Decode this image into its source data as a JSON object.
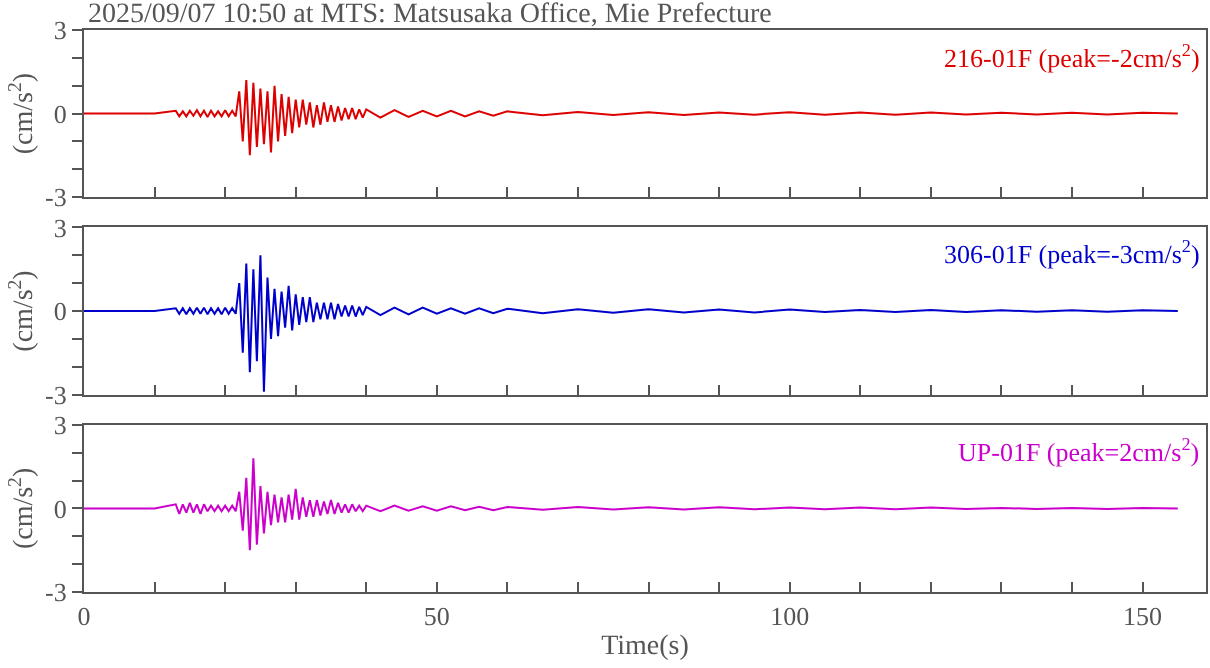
{
  "chart_data": [
    {
      "type": "line",
      "title": "2025/09/07 10:50 at MTS: Matsusaka Office, Mie Prefecture",
      "ylabel": "(cm/s$^{2}$)",
      "legend": false,
      "tick_labels": "y",
      "marker": "none",
      "line_style": "solid",
      "xlim": [
        0,
        159
      ],
      "xticks": [
        0,
        {
          "value": 10,
          "label": null
        },
        {
          "value": 20,
          "label": null
        },
        {
          "value": 30,
          "label": null
        },
        {
          "value": 40,
          "label": null
        },
        50,
        {
          "value": 60,
          "label": null
        },
        {
          "value": 70,
          "label": null
        },
        {
          "value": 80,
          "label": null
        },
        {
          "value": 90,
          "label": null
        },
        100,
        {
          "value": 110,
          "label": null
        },
        {
          "value": 120,
          "label": null
        },
        {
          "value": 130,
          "label": null
        },
        {
          "value": 140,
          "label": null
        },
        150
      ],
      "ylim": [
        -3,
        3
      ],
      "yticks": [
        -3,
        {
          "value": -2,
          "label": null
        },
        {
          "value": -1,
          "label": null
        },
        0,
        {
          "value": 1,
          "label": null
        },
        {
          "value": 2,
          "label": null
        },
        3
      ],
      "x": [
        0,
        10,
        13,
        13.5,
        14,
        14.5,
        15,
        15.5,
        16,
        16.5,
        17,
        17.5,
        18,
        18.5,
        19,
        19.5,
        20,
        20.5,
        21,
        21.5,
        22,
        22.5,
        23,
        23.5,
        24,
        24.5,
        25,
        25.5,
        26,
        26.5,
        27,
        27.5,
        28,
        28.5,
        29,
        29.5,
        30,
        30.5,
        31,
        31.5,
        32,
        32.5,
        33,
        33.5,
        34,
        34.5,
        35,
        35.5,
        36,
        36.5,
        37,
        37.5,
        38,
        38.5,
        39,
        39.5,
        40,
        42,
        44,
        46,
        48,
        50,
        52,
        54,
        56,
        58,
        60,
        65,
        70,
        75,
        80,
        85,
        90,
        95,
        100,
        105,
        110,
        115,
        120,
        125,
        130,
        135,
        140,
        145,
        150,
        155
      ],
      "series": [
        {
          "name": "216-01F (peak=-2cm/s$^{2}$)",
          "color": "#dd0000",
          "values": [
            0,
            0,
            0.1,
            -0.1,
            0.08,
            -0.1,
            0.1,
            -0.08,
            0.12,
            -0.1,
            0.1,
            -0.12,
            0.1,
            -0.1,
            0.08,
            -0.1,
            0.12,
            -0.1,
            0.1,
            -0.1,
            0.8,
            -1.0,
            1.2,
            -1.5,
            1.1,
            -1.2,
            0.9,
            -1.1,
            0.8,
            -1.4,
            1.0,
            -1.0,
            0.7,
            -0.8,
            0.6,
            -0.7,
            0.5,
            -0.5,
            0.5,
            -0.4,
            0.4,
            -0.5,
            0.3,
            -0.4,
            0.4,
            -0.3,
            0.3,
            -0.3,
            0.25,
            -0.25,
            0.2,
            -0.2,
            0.2,
            -0.2,
            0.15,
            -0.15,
            0.15,
            -0.15,
            0.12,
            -0.12,
            0.1,
            -0.1,
            0.1,
            -0.1,
            0.08,
            -0.08,
            0.08,
            -0.06,
            0.06,
            -0.05,
            0.05,
            -0.05,
            0.04,
            -0.04,
            0.05,
            -0.04,
            0.04,
            -0.04,
            0.04,
            -0.03,
            0.03,
            -0.03,
            0.03,
            -0.03,
            0.03,
            0
          ]
        }
      ]
    },
    {
      "type": "line",
      "ylabel": "(cm/s$^{2}$)",
      "legend": false,
      "tick_labels": "y",
      "marker": "none",
      "line_style": "solid",
      "xlim": [
        0,
        159
      ],
      "xticks": [
        0,
        {
          "value": 10,
          "label": null
        },
        {
          "value": 20,
          "label": null
        },
        {
          "value": 30,
          "label": null
        },
        {
          "value": 40,
          "label": null
        },
        50,
        {
          "value": 60,
          "label": null
        },
        {
          "value": 70,
          "label": null
        },
        {
          "value": 80,
          "label": null
        },
        {
          "value": 90,
          "label": null
        },
        100,
        {
          "value": 110,
          "label": null
        },
        {
          "value": 120,
          "label": null
        },
        {
          "value": 130,
          "label": null
        },
        {
          "value": 140,
          "label": null
        },
        150
      ],
      "ylim": [
        -3,
        3
      ],
      "yticks": [
        -3,
        {
          "value": -2,
          "label": null
        },
        {
          "value": -1,
          "label": null
        },
        0,
        {
          "value": 1,
          "label": null
        },
        {
          "value": 2,
          "label": null
        },
        3
      ],
      "x": [
        0,
        10,
        13,
        13.5,
        14,
        14.5,
        15,
        15.5,
        16,
        16.5,
        17,
        17.5,
        18,
        18.5,
        19,
        19.5,
        20,
        20.5,
        21,
        21.5,
        22,
        22.5,
        23,
        23.5,
        24,
        24.5,
        25,
        25.5,
        26,
        26.5,
        27,
        27.5,
        28,
        28.5,
        29,
        29.5,
        30,
        30.5,
        31,
        31.5,
        32,
        32.5,
        33,
        33.5,
        34,
        34.5,
        35,
        35.5,
        36,
        36.5,
        37,
        37.5,
        38,
        38.5,
        39,
        39.5,
        40,
        42,
        44,
        46,
        48,
        50,
        52,
        54,
        56,
        58,
        60,
        65,
        70,
        75,
        80,
        85,
        90,
        95,
        100,
        105,
        110,
        115,
        120,
        125,
        130,
        135,
        140,
        145,
        150,
        155
      ],
      "series": [
        {
          "name": "306-01F (peak=-3cm/s$^{2}$)",
          "color": "#0000cc",
          "values": [
            0,
            0,
            0.1,
            -0.1,
            0.1,
            -0.12,
            0.1,
            -0.1,
            0.12,
            -0.1,
            0.12,
            -0.12,
            0.1,
            -0.1,
            0.1,
            -0.12,
            0.12,
            -0.1,
            0.1,
            -0.1,
            1.0,
            -1.5,
            1.7,
            -2.2,
            1.5,
            -1.8,
            2.0,
            -2.9,
            1.2,
            -1.0,
            0.8,
            -0.9,
            0.7,
            -0.6,
            0.9,
            -0.7,
            0.6,
            -0.5,
            0.5,
            -0.4,
            0.5,
            -0.4,
            0.3,
            -0.3,
            0.3,
            -0.3,
            0.3,
            -0.3,
            0.25,
            -0.2,
            0.2,
            -0.2,
            0.2,
            -0.2,
            0.15,
            -0.15,
            0.15,
            -0.15,
            0.12,
            -0.12,
            0.12,
            -0.1,
            0.1,
            -0.1,
            0.1,
            -0.08,
            0.08,
            -0.08,
            0.06,
            -0.06,
            0.06,
            -0.05,
            0.05,
            -0.05,
            0.05,
            -0.04,
            0.04,
            -0.04,
            0.04,
            -0.04,
            0.03,
            -0.03,
            0.03,
            -0.03,
            0.03,
            0
          ]
        }
      ]
    },
    {
      "type": "line",
      "ylabel": "(cm/s$^{2}$)",
      "xlabel": "Time(s)",
      "legend": false,
      "marker": "none",
      "line_style": "solid",
      "xlim": [
        0,
        159
      ],
      "xticks": [
        0,
        {
          "value": 10,
          "label": null
        },
        {
          "value": 20,
          "label": null
        },
        {
          "value": 30,
          "label": null
        },
        {
          "value": 40,
          "label": null
        },
        50,
        {
          "value": 60,
          "label": null
        },
        {
          "value": 70,
          "label": null
        },
        {
          "value": 80,
          "label": null
        },
        {
          "value": 90,
          "label": null
        },
        100,
        {
          "value": 110,
          "label": null
        },
        {
          "value": 120,
          "label": null
        },
        {
          "value": 130,
          "label": null
        },
        {
          "value": 140,
          "label": null
        },
        150
      ],
      "ylim": [
        -3,
        3
      ],
      "yticks": [
        -3,
        {
          "value": -2,
          "label": null
        },
        {
          "value": -1,
          "label": null
        },
        0,
        {
          "value": 1,
          "label": null
        },
        {
          "value": 2,
          "label": null
        },
        3
      ],
      "x": [
        0,
        10,
        13,
        13.5,
        14,
        14.5,
        15,
        15.5,
        16,
        16.5,
        17,
        17.5,
        18,
        18.5,
        19,
        19.5,
        20,
        20.5,
        21,
        21.5,
        22,
        22.5,
        23,
        23.5,
        24,
        24.5,
        25,
        25.5,
        26,
        26.5,
        27,
        27.5,
        28,
        28.5,
        29,
        29.5,
        30,
        30.5,
        31,
        31.5,
        32,
        32.5,
        33,
        33.5,
        34,
        34.5,
        35,
        35.5,
        36,
        36.5,
        37,
        37.5,
        38,
        38.5,
        39,
        39.5,
        40,
        42,
        44,
        46,
        48,
        50,
        52,
        54,
        56,
        58,
        60,
        65,
        70,
        75,
        80,
        85,
        90,
        95,
        100,
        105,
        110,
        115,
        120,
        125,
        130,
        135,
        140,
        145,
        150,
        155
      ],
      "series": [
        {
          "name": "UP-01F (peak=2cm/s$^{2}$)",
          "color": "#cc00cc",
          "values": [
            0,
            0,
            0.15,
            -0.2,
            0.15,
            -0.15,
            0.2,
            -0.15,
            0.15,
            -0.2,
            0.15,
            -0.1,
            0.1,
            -0.1,
            0.1,
            -0.1,
            0.1,
            -0.1,
            0.1,
            -0.1,
            0.6,
            -0.8,
            1.1,
            -1.5,
            1.8,
            -1.3,
            0.8,
            -0.9,
            0.6,
            -0.6,
            0.5,
            -0.5,
            0.4,
            -0.5,
            0.5,
            -0.4,
            0.7,
            -0.4,
            0.4,
            -0.3,
            0.3,
            -0.3,
            0.3,
            -0.25,
            0.25,
            -0.2,
            0.3,
            -0.2,
            0.2,
            -0.15,
            0.15,
            -0.15,
            0.15,
            -0.1,
            0.1,
            -0.1,
            0.1,
            -0.1,
            0.1,
            -0.08,
            0.08,
            -0.08,
            0.08,
            -0.06,
            0.06,
            -0.06,
            0.05,
            -0.05,
            0.05,
            -0.04,
            0.04,
            -0.04,
            0.04,
            -0.03,
            0.03,
            -0.03,
            0.03,
            -0.03,
            0.03,
            -0.02,
            0.02,
            -0.02,
            0.02,
            -0.02,
            0.02,
            0
          ]
        }
      ]
    }
  ]
}
